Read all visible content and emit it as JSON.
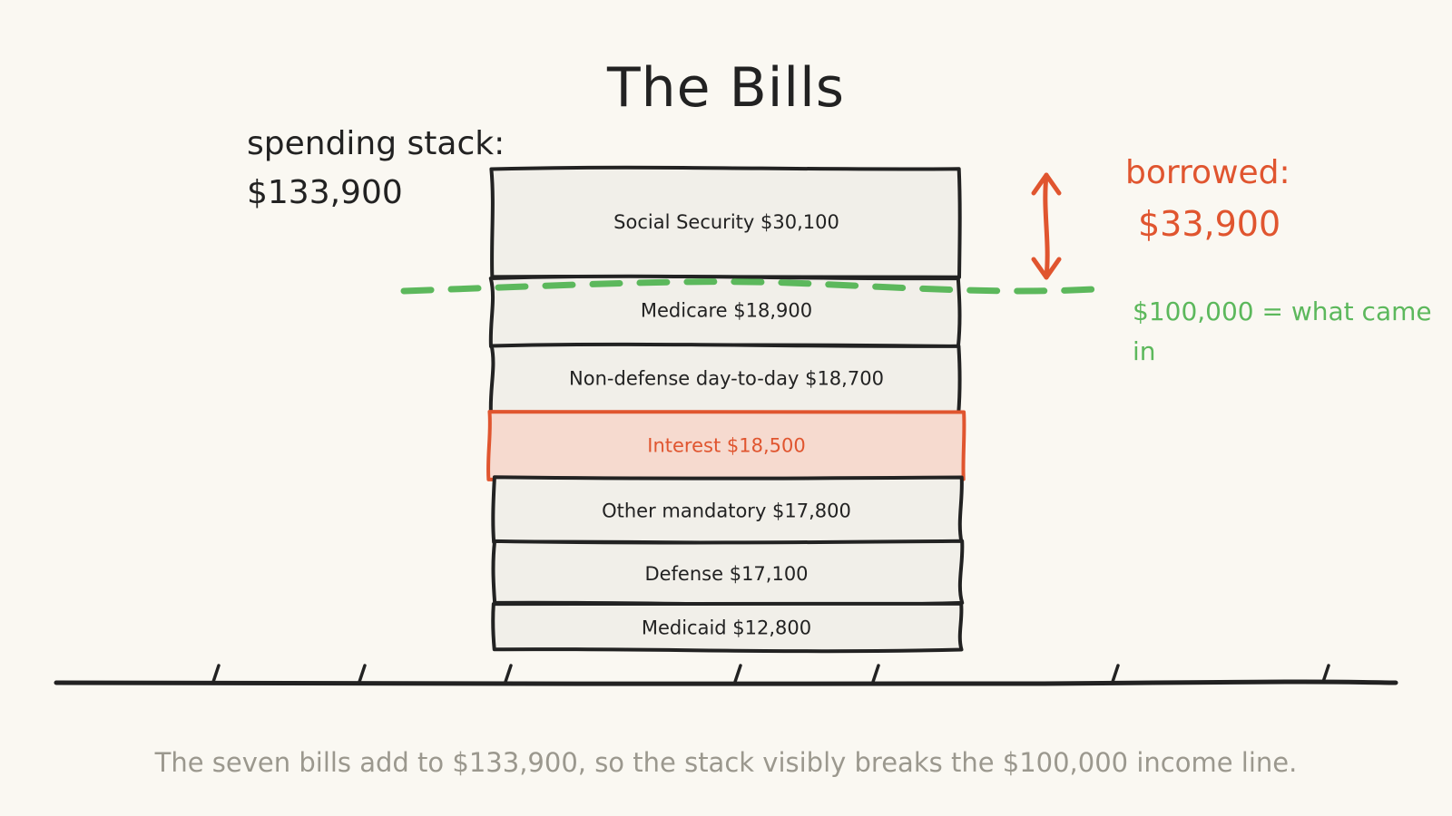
{
  "title": "The Bills",
  "stack_label": {
    "line1": "spending stack:",
    "line2": "$133,900"
  },
  "borrowed": {
    "label": "borrowed:",
    "amount": "$33,900"
  },
  "income_note": "$100,000 = what came in",
  "caption": "The seven bills add to $133,900, so the stack visibly breaks the $100,000 income line.",
  "colors": {
    "ink": "#222222",
    "block_fill": "#f1efe9",
    "highlight_fill": "#f6dacf",
    "highlight_stroke": "#e0552f",
    "income_line": "#5cb85c",
    "caption": "#9b988e",
    "background": "#faf8f2"
  },
  "chart_data": {
    "type": "bar",
    "stacked": true,
    "series": [
      {
        "label": "Social Security $30,100",
        "value": 30100
      },
      {
        "label": "Medicare $18,900",
        "value": 18900
      },
      {
        "label": "Non-defense day-to-day $18,700",
        "value": 18700
      },
      {
        "label": "Interest $18,500",
        "value": 18500,
        "highlight": true
      },
      {
        "label": "Other mandatory $17,800",
        "value": 17800
      },
      {
        "label": "Defense $17,100",
        "value": 17100
      },
      {
        "label": "Medicaid $12,800",
        "value": 12800
      }
    ],
    "total": 133900,
    "income_line": 100000,
    "borrowed": 33900
  }
}
